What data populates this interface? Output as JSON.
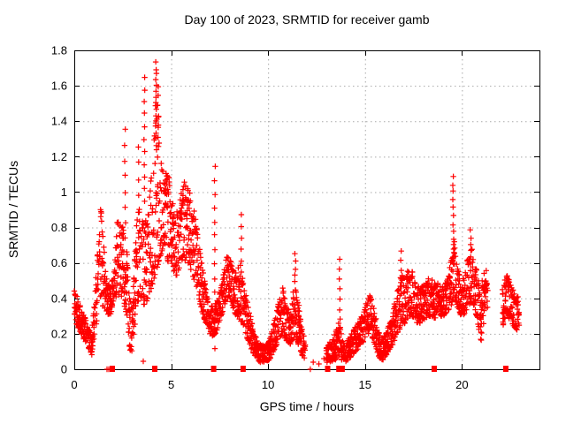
{
  "title": "Day 100 of 2023, SRMTID for receiver gamb",
  "axes": {
    "xlabel": "GPS time / hours",
    "ylabel": "SRMTID / TECUs",
    "xlim": [
      0,
      24
    ],
    "ylim": [
      0,
      1.8
    ],
    "x_ticks": [
      {
        "v": 0,
        "label": "0"
      },
      {
        "v": 5,
        "label": "5"
      },
      {
        "v": 10,
        "label": "10"
      },
      {
        "v": 15,
        "label": "15"
      },
      {
        "v": 20,
        "label": "20"
      }
    ],
    "y_ticks": [
      {
        "v": 0,
        "label": "0"
      },
      {
        "v": 0.2,
        "label": "0.2"
      },
      {
        "v": 0.4,
        "label": "0.4"
      },
      {
        "v": 0.6,
        "label": "0.6"
      },
      {
        "v": 0.8,
        "label": "0.8"
      },
      {
        "v": 1,
        "label": "1"
      },
      {
        "v": 1.2,
        "label": "1.2"
      },
      {
        "v": 1.4,
        "label": "1.4"
      },
      {
        "v": 1.6,
        "label": "1.6"
      },
      {
        "v": 1.8,
        "label": "1.8"
      }
    ],
    "grid": true
  },
  "colors": {
    "marker": "#ff0000",
    "grid": "#a9a9a9",
    "border": "#000000",
    "background": "#ffffff"
  },
  "chart_data": {
    "type": "scatter",
    "marker": "plus",
    "title": "Day 100 of 2023, SRMTID for receiver gamb",
    "xlabel": "GPS time / hours",
    "ylabel": "SRMTID / TECUs",
    "xlim": [
      0,
      24
    ],
    "ylim": [
      0,
      1.8
    ],
    "sample_step_hours": 0.0125,
    "band_keyframes": [
      [
        0.0,
        0.28,
        0.48
      ],
      [
        0.3,
        0.2,
        0.36
      ],
      [
        0.6,
        0.15,
        0.28
      ],
      [
        0.9,
        0.08,
        0.2
      ],
      [
        1.05,
        0.2,
        0.4
      ],
      [
        1.25,
        0.32,
        0.8
      ],
      [
        1.35,
        0.38,
        0.96
      ],
      [
        1.5,
        0.35,
        0.75
      ],
      [
        1.65,
        0.32,
        0.52
      ],
      [
        1.85,
        0.3,
        0.46
      ],
      [
        2.05,
        0.36,
        0.55
      ],
      [
        2.25,
        0.42,
        0.9
      ],
      [
        2.4,
        0.42,
        0.8
      ],
      [
        2.55,
        0.38,
        0.85
      ],
      [
        2.7,
        0.3,
        0.7
      ],
      [
        2.85,
        0.1,
        0.4
      ],
      [
        3.0,
        0.1,
        0.35
      ],
      [
        3.15,
        0.28,
        0.75
      ],
      [
        3.3,
        0.38,
        0.95
      ],
      [
        3.45,
        0.4,
        0.88
      ],
      [
        3.6,
        0.35,
        0.95
      ],
      [
        3.75,
        0.38,
        0.85
      ],
      [
        3.9,
        0.42,
        1.0
      ],
      [
        4.05,
        0.48,
        1.2
      ],
      [
        4.2,
        0.55,
        1.55
      ],
      [
        4.35,
        0.6,
        1.45
      ],
      [
        4.5,
        0.65,
        1.2
      ],
      [
        4.65,
        0.72,
        1.1
      ],
      [
        4.8,
        0.58,
        1.12
      ],
      [
        4.95,
        0.62,
        1.06
      ],
      [
        5.1,
        0.55,
        0.95
      ],
      [
        5.25,
        0.52,
        0.88
      ],
      [
        5.45,
        0.58,
        0.95
      ],
      [
        5.65,
        0.62,
        1.08
      ],
      [
        5.85,
        0.6,
        1.05
      ],
      [
        6.05,
        0.55,
        0.98
      ],
      [
        6.25,
        0.48,
        0.88
      ],
      [
        6.45,
        0.38,
        0.7
      ],
      [
        6.65,
        0.3,
        0.55
      ],
      [
        6.85,
        0.24,
        0.42
      ],
      [
        7.05,
        0.18,
        0.36
      ],
      [
        7.3,
        0.2,
        0.38
      ],
      [
        7.55,
        0.28,
        0.46
      ],
      [
        7.8,
        0.38,
        0.62
      ],
      [
        7.95,
        0.4,
        0.65
      ],
      [
        8.15,
        0.34,
        0.58
      ],
      [
        8.35,
        0.3,
        0.55
      ],
      [
        8.55,
        0.28,
        0.6
      ],
      [
        8.7,
        0.25,
        0.52
      ],
      [
        8.9,
        0.18,
        0.4
      ],
      [
        9.1,
        0.12,
        0.3
      ],
      [
        9.3,
        0.07,
        0.2
      ],
      [
        9.55,
        0.04,
        0.15
      ],
      [
        9.8,
        0.04,
        0.13
      ],
      [
        10.05,
        0.05,
        0.16
      ],
      [
        10.3,
        0.1,
        0.26
      ],
      [
        10.55,
        0.17,
        0.38
      ],
      [
        10.75,
        0.2,
        0.47
      ],
      [
        10.95,
        0.16,
        0.36
      ],
      [
        11.15,
        0.14,
        0.32
      ],
      [
        11.35,
        0.18,
        0.48
      ],
      [
        11.55,
        0.14,
        0.4
      ],
      [
        11.75,
        0.08,
        0.25
      ],
      [
        11.9,
        0.05,
        0.15
      ],
      [
        13.0,
        0.03,
        0.12
      ],
      [
        13.2,
        0.04,
        0.16
      ],
      [
        13.45,
        0.05,
        0.2
      ],
      [
        13.65,
        0.08,
        0.28
      ],
      [
        13.8,
        0.05,
        0.22
      ],
      [
        13.95,
        0.04,
        0.14
      ],
      [
        14.2,
        0.06,
        0.18
      ],
      [
        14.45,
        0.09,
        0.23
      ],
      [
        14.7,
        0.12,
        0.27
      ],
      [
        14.95,
        0.15,
        0.33
      ],
      [
        15.15,
        0.2,
        0.41
      ],
      [
        15.3,
        0.2,
        0.42
      ],
      [
        15.5,
        0.14,
        0.32
      ],
      [
        15.7,
        0.07,
        0.22
      ],
      [
        15.9,
        0.05,
        0.18
      ],
      [
        16.1,
        0.08,
        0.22
      ],
      [
        16.35,
        0.12,
        0.28
      ],
      [
        16.6,
        0.18,
        0.42
      ],
      [
        16.85,
        0.24,
        0.55
      ],
      [
        17.05,
        0.26,
        0.5
      ],
      [
        17.25,
        0.3,
        0.58
      ],
      [
        17.45,
        0.3,
        0.55
      ],
      [
        17.65,
        0.26,
        0.48
      ],
      [
        17.85,
        0.26,
        0.46
      ],
      [
        18.05,
        0.28,
        0.48
      ],
      [
        18.25,
        0.3,
        0.51
      ],
      [
        18.45,
        0.3,
        0.52
      ],
      [
        18.65,
        0.28,
        0.48
      ],
      [
        18.85,
        0.3,
        0.49
      ],
      [
        19.05,
        0.3,
        0.48
      ],
      [
        19.25,
        0.32,
        0.51
      ],
      [
        19.45,
        0.36,
        0.62
      ],
      [
        19.6,
        0.4,
        0.75
      ],
      [
        19.75,
        0.35,
        0.58
      ],
      [
        19.95,
        0.3,
        0.51
      ],
      [
        20.15,
        0.31,
        0.53
      ],
      [
        20.35,
        0.36,
        0.66
      ],
      [
        20.5,
        0.38,
        0.7
      ],
      [
        20.65,
        0.34,
        0.6
      ],
      [
        20.85,
        0.22,
        0.52
      ],
      [
        21.0,
        0.12,
        0.45
      ],
      [
        21.15,
        0.3,
        0.6
      ],
      [
        21.3,
        0.34,
        0.55
      ],
      [
        22.1,
        0.24,
        0.45
      ],
      [
        22.3,
        0.3,
        0.55
      ],
      [
        22.5,
        0.28,
        0.5
      ],
      [
        22.7,
        0.22,
        0.45
      ],
      [
        22.95,
        0.2,
        0.4
      ]
    ],
    "gaps": [
      [
        11.92,
        12.99
      ],
      [
        21.33,
        22.08
      ],
      [
        22.96,
        24.0
      ]
    ],
    "spike_columns": [
      [
        2.62,
        0.82,
        1.36,
        7
      ],
      [
        3.3,
        0.98,
        1.26,
        4
      ],
      [
        3.62,
        0.95,
        1.65,
        11
      ],
      [
        4.22,
        1.3,
        1.73,
        14
      ],
      [
        4.32,
        1.2,
        1.6,
        8
      ],
      [
        7.25,
        0.12,
        1.15,
        14
      ],
      [
        8.62,
        0.55,
        0.87,
        6
      ],
      [
        11.4,
        0.45,
        0.65,
        6
      ],
      [
        13.7,
        0.28,
        0.62,
        7
      ],
      [
        16.85,
        0.42,
        0.66,
        6
      ],
      [
        19.55,
        0.55,
        1.09,
        13
      ],
      [
        20.45,
        0.55,
        0.78,
        7
      ]
    ],
    "sparse_points": [
      [
        3.56,
        0.045
      ],
      [
        12.33,
        0.04
      ],
      [
        12.62,
        0.03
      ],
      [
        12.88,
        0.06
      ]
    ],
    "zero_plus_points": [
      1.69,
      1.78,
      12.18
    ],
    "axis_square_markers_t": [
      1.96,
      4.15,
      7.19,
      8.71,
      13.07,
      13.65,
      13.82,
      18.57,
      22.26
    ]
  }
}
